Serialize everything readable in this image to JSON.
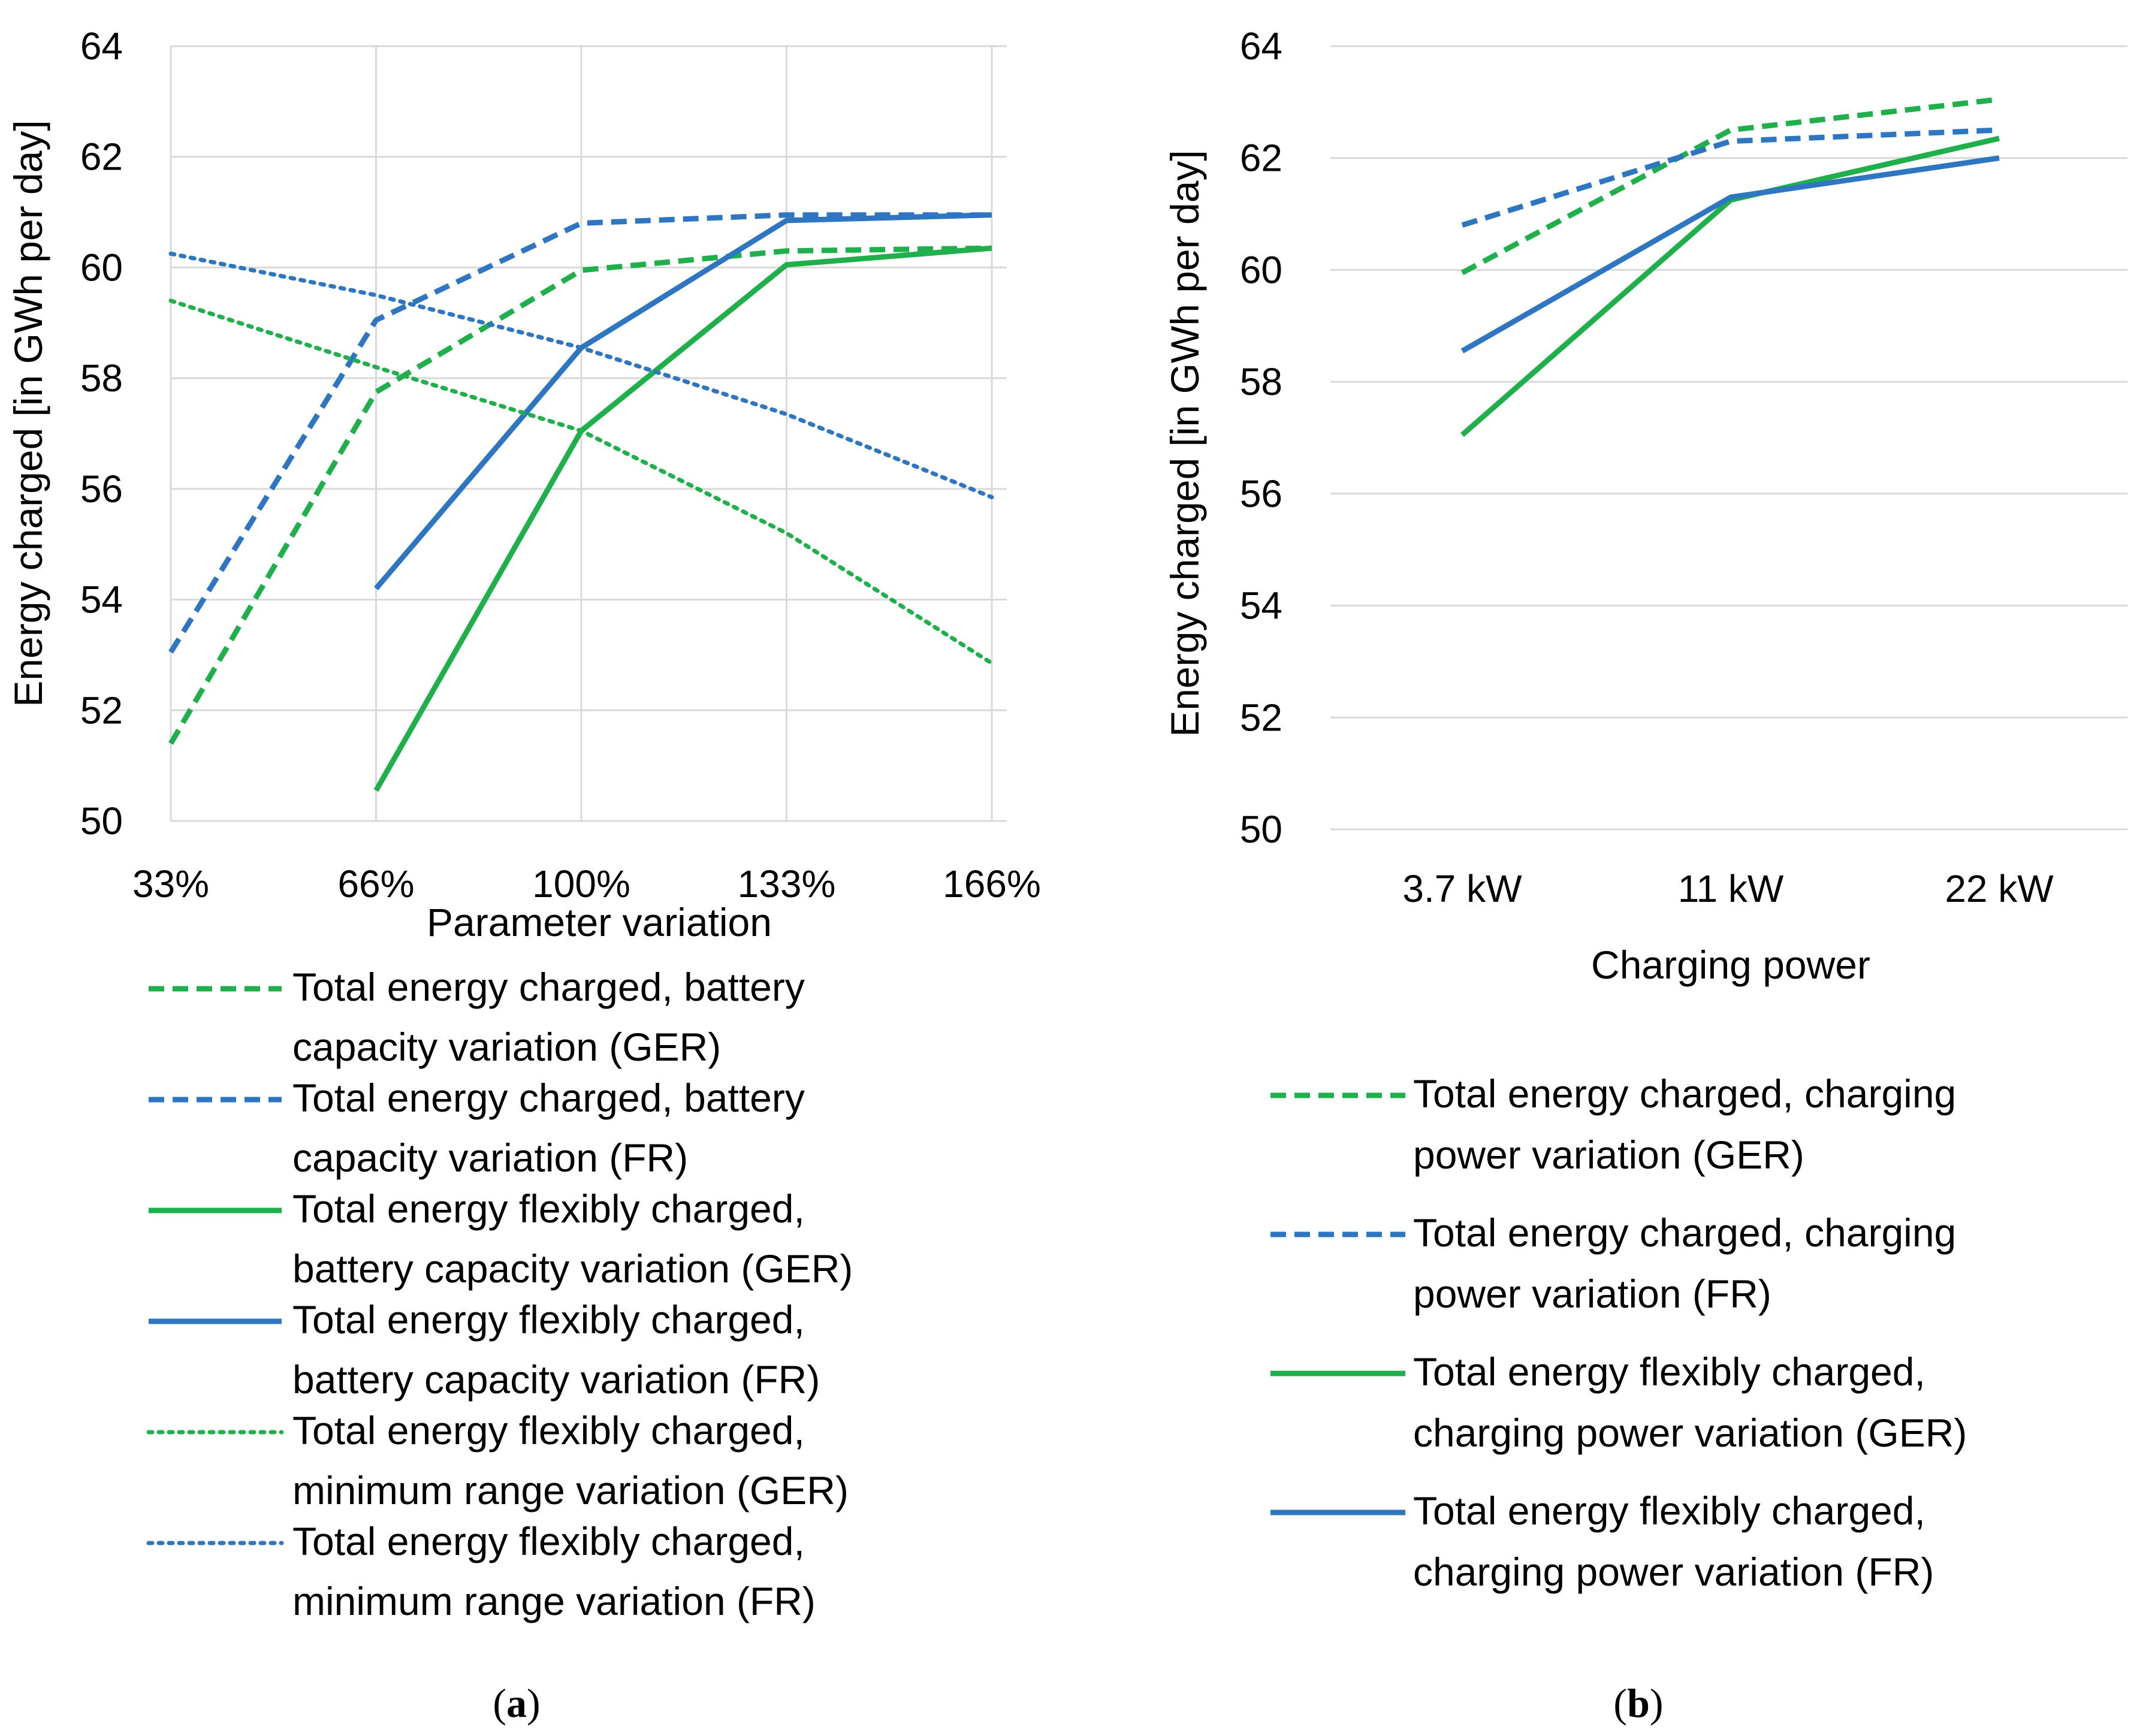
{
  "chart_data": [
    {
      "type": "line",
      "panel": "a",
      "caption_letter": "a",
      "ylabel": "Energy charged [in GWh per day]",
      "xlabel": "Parameter variation",
      "ylim": [
        50,
        64
      ],
      "yticks": [
        "50",
        "52",
        "54",
        "56",
        "58",
        "60",
        "62",
        "64"
      ],
      "categories": [
        "33%",
        "66%",
        "100%",
        "133%",
        "166%"
      ],
      "grid": true,
      "legend_position": "bottom",
      "series": [
        {
          "name": "Total energy charged, battery capacity variation (GER)",
          "legend_lines": [
            "Total energy charged, battery",
            "capacity variation (GER)"
          ],
          "color": "#1FAF4B",
          "dash": "dashed",
          "values": [
            51.4,
            57.75,
            59.95,
            60.3,
            60.35
          ]
        },
        {
          "name": "Total energy charged, battery capacity variation (FR)",
          "legend_lines": [
            "Total energy charged, battery",
            "capacity variation (FR)"
          ],
          "color": "#2E75C2",
          "dash": "dashed",
          "values": [
            53.05,
            59.05,
            60.8,
            60.95,
            60.95
          ]
        },
        {
          "name": "Total energy flexibly charged, battery capacity variation (GER)",
          "legend_lines": [
            "Total energy flexibly charged,",
            "battery capacity variation (GER)"
          ],
          "color": "#1FAF4B",
          "dash": "solid",
          "values": [
            null,
            50.55,
            57.05,
            60.05,
            60.35
          ]
        },
        {
          "name": "Total energy flexibly charged, battery capacity variation (FR)",
          "legend_lines": [
            "Total energy flexibly charged,",
            "battery capacity variation (FR)"
          ],
          "color": "#2E75C2",
          "dash": "solid",
          "values": [
            null,
            54.2,
            58.55,
            60.85,
            60.95
          ]
        },
        {
          "name": "Total energy flexibly charged, minimum range variation (GER)",
          "legend_lines": [
            "Total energy flexibly charged,",
            "minimum range variation (GER)"
          ],
          "color": "#1FAF4B",
          "dash": "dotted",
          "values": [
            59.4,
            58.2,
            57.05,
            55.2,
            52.85
          ]
        },
        {
          "name": "Total energy flexibly charged, minimum range variation (FR)",
          "legend_lines": [
            "Total energy flexibly charged,",
            "minimum range variation (FR)"
          ],
          "color": "#2E75C2",
          "dash": "dotted",
          "values": [
            60.25,
            59.5,
            58.55,
            57.35,
            55.85
          ]
        }
      ]
    },
    {
      "type": "line",
      "panel": "b",
      "caption_letter": "b",
      "ylabel": "Energy charged [in GWh per day]",
      "xlabel": "Charging power",
      "ylim": [
        50,
        64
      ],
      "yticks": [
        "50",
        "52",
        "54",
        "56",
        "58",
        "60",
        "62",
        "64"
      ],
      "categories": [
        "3.7 kW",
        "11 kW",
        "22 kW"
      ],
      "grid": true,
      "legend_position": "bottom",
      "series": [
        {
          "name": "Total energy charged, charging power variation (GER)",
          "legend_lines": [
            "Total energy charged, charging",
            "power variation (GER)"
          ],
          "color": "#1FAF4B",
          "dash": "dashed",
          "values": [
            59.95,
            62.5,
            63.05
          ]
        },
        {
          "name": "Total energy charged, charging power variation (FR)",
          "legend_lines": [
            "Total energy charged, charging",
            "power variation (FR)"
          ],
          "color": "#2E75C2",
          "dash": "dashed",
          "values": [
            60.8,
            62.3,
            62.5
          ]
        },
        {
          "name": "Total energy flexibly charged, charging power variation (GER)",
          "legend_lines": [
            "Total energy flexibly charged,",
            "charging power variation (GER)"
          ],
          "color": "#1FAF4B",
          "dash": "solid",
          "values": [
            57.05,
            61.25,
            62.35
          ]
        },
        {
          "name": "Total energy flexibly charged, charging power variation (FR)",
          "legend_lines": [
            "Total energy flexibly charged,",
            "charging power variation (FR)"
          ],
          "color": "#2E75C2",
          "dash": "solid",
          "values": [
            58.55,
            61.3,
            62.0
          ]
        }
      ]
    }
  ]
}
